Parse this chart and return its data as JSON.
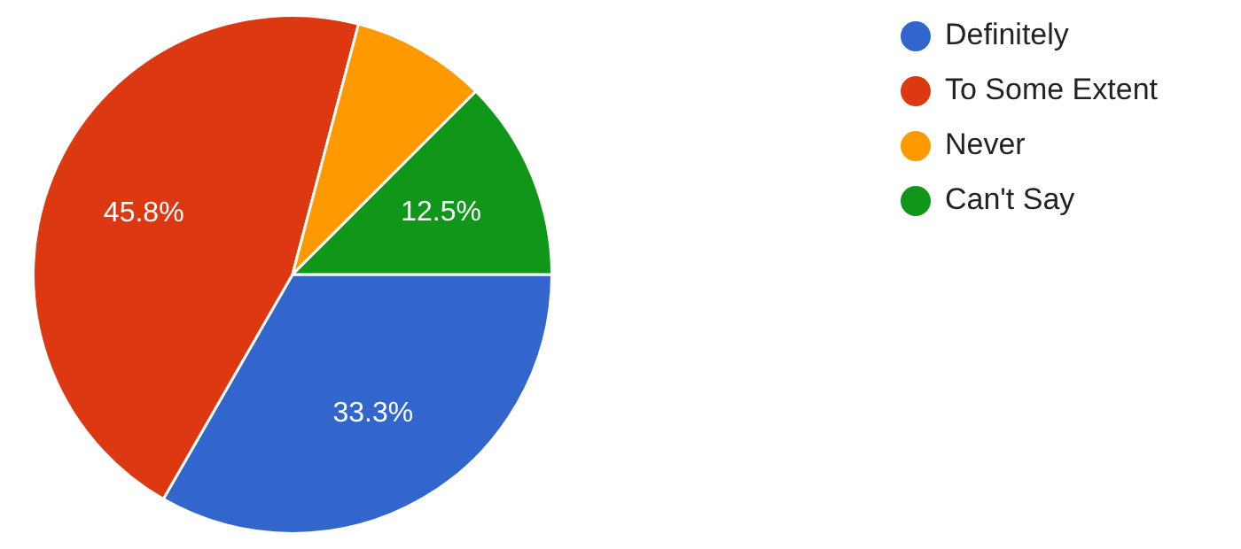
{
  "chart_data": {
    "type": "pie",
    "categories": [
      "Definitely",
      "To Some Extent",
      "Never",
      "Can't Say"
    ],
    "values": [
      33.3,
      45.8,
      8.4,
      12.5
    ],
    "colors": [
      "#3366cc",
      "#dc3912",
      "#ff9900",
      "#109618"
    ],
    "value_labels": [
      "33.3%",
      "45.8%",
      null,
      "12.5%"
    ],
    "legend": "top right"
  }
}
